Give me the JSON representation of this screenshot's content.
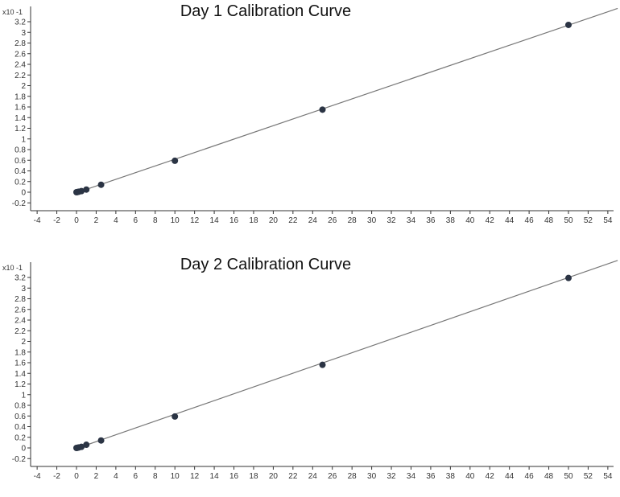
{
  "chart_data": [
    {
      "type": "scatter",
      "title": "Day 1 Calibration Curve",
      "y_multiplier_label": "x10 -1",
      "xlabel": "",
      "ylabel": "",
      "xlim": [
        -5,
        55
      ],
      "ylim": [
        -0.3,
        3.4
      ],
      "x_ticks": [
        -4,
        -2,
        0,
        2,
        4,
        6,
        8,
        10,
        12,
        14,
        16,
        18,
        20,
        22,
        24,
        26,
        28,
        30,
        32,
        34,
        36,
        38,
        40,
        42,
        44,
        46,
        48,
        50,
        52,
        54
      ],
      "y_ticks": [
        -0.2,
        0,
        0.2,
        0.4,
        0.6,
        0.8,
        1,
        1.2,
        1.4,
        1.6,
        1.8,
        2,
        2.2,
        2.4,
        2.6,
        2.8,
        3,
        3.2
      ],
      "grid": false,
      "series": [
        {
          "x": [
            0,
            0.1,
            0.25,
            0.5,
            1,
            2.5,
            10,
            25,
            50
          ],
          "y": [
            0,
            0.004,
            0.01,
            0.02,
            0.05,
            0.14,
            0.59,
            1.55,
            3.14
          ]
        }
      ],
      "fit_line": {
        "x": [
          0,
          55
        ],
        "y": [
          -0.01,
          3.45
        ]
      }
    },
    {
      "type": "scatter",
      "title": "Day 2 Calibration Curve",
      "y_multiplier_label": "x10 -1",
      "xlabel": "",
      "ylabel": "",
      "xlim": [
        -5,
        55
      ],
      "ylim": [
        -0.3,
        3.4
      ],
      "x_ticks": [
        -4,
        -2,
        0,
        2,
        4,
        6,
        8,
        10,
        12,
        14,
        16,
        18,
        20,
        22,
        24,
        26,
        28,
        30,
        32,
        34,
        36,
        38,
        40,
        42,
        44,
        46,
        48,
        50,
        52,
        54
      ],
      "y_ticks": [
        -0.2,
        0,
        0.2,
        0.4,
        0.6,
        0.8,
        1,
        1.2,
        1.4,
        1.6,
        1.8,
        2,
        2.2,
        2.4,
        2.6,
        2.8,
        3,
        3.2
      ],
      "grid": false,
      "series": [
        {
          "x": [
            0,
            0.1,
            0.25,
            0.5,
            1,
            2.5,
            10,
            25,
            50
          ],
          "y": [
            0,
            0.004,
            0.01,
            0.02,
            0.06,
            0.14,
            0.59,
            1.56,
            3.19
          ]
        }
      ],
      "fit_line": {
        "x": [
          0,
          55
        ],
        "y": [
          -0.01,
          3.52
        ]
      }
    }
  ],
  "style": {
    "axis_color": "#333333",
    "point_color": "#2b3444",
    "line_color": "#777777"
  }
}
